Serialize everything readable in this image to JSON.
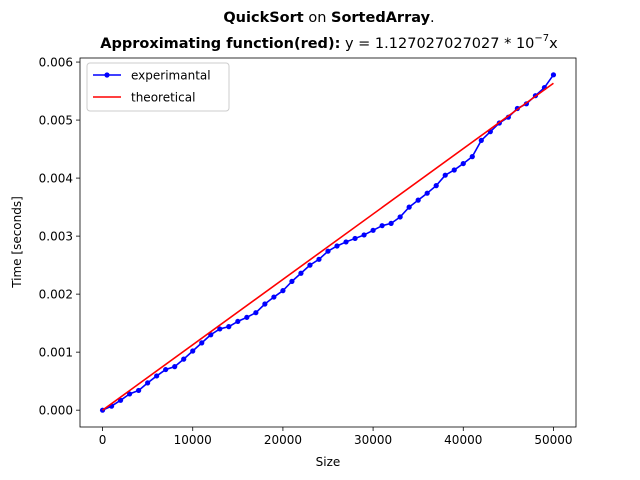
{
  "chart_data": {
    "type": "line",
    "title_line1": {
      "algorithm": "QuickSort",
      "connector": " on ",
      "input": "SortedArray",
      "suffix": "."
    },
    "title_line2": {
      "label": "Approximating function(red):",
      "formula_prefix": " y = 1.127027027027 * 10",
      "formula_exponent": "−7",
      "formula_suffix": "x"
    },
    "xlabel": "Size",
    "ylabel": "Time [seconds]",
    "xlim": [
      -2500,
      52500
    ],
    "ylim": [
      -0.00029,
      0.00607
    ],
    "xticks": [
      0,
      10000,
      20000,
      30000,
      40000,
      50000
    ],
    "xtick_labels": [
      "0",
      "10000",
      "20000",
      "30000",
      "40000",
      "50000"
    ],
    "yticks": [
      0.0,
      0.001,
      0.002,
      0.003,
      0.004,
      0.005,
      0.006
    ],
    "ytick_labels": [
      "0.000",
      "0.001",
      "0.002",
      "0.003",
      "0.004",
      "0.005",
      "0.006"
    ],
    "grid": false,
    "legend_placement": "top-left",
    "series": [
      {
        "name": "experimantal",
        "color": "#0000ff",
        "marker": "circle",
        "x": [
          0,
          1000,
          2000,
          3000,
          4000,
          5000,
          6000,
          7000,
          8000,
          9000,
          10000,
          11000,
          12000,
          13000,
          14000,
          15000,
          16000,
          17000,
          18000,
          19000,
          20000,
          21000,
          22000,
          23000,
          24000,
          25000,
          26000,
          27000,
          28000,
          29000,
          30000,
          31000,
          32000,
          33000,
          34000,
          35000,
          36000,
          37000,
          38000,
          39000,
          40000,
          41000,
          42000,
          43000,
          44000,
          45000,
          46000,
          47000,
          48000,
          49000,
          50000
        ],
        "y": [
          0.0,
          7e-05,
          0.00017,
          0.00028,
          0.00034,
          0.00047,
          0.00059,
          0.0007,
          0.00075,
          0.00088,
          0.00102,
          0.00116,
          0.0013,
          0.0014,
          0.00144,
          0.00153,
          0.0016,
          0.00168,
          0.00183,
          0.00195,
          0.00206,
          0.00222,
          0.00236,
          0.0025,
          0.0026,
          0.00274,
          0.00283,
          0.0029,
          0.00296,
          0.00302,
          0.0031,
          0.00318,
          0.00322,
          0.00333,
          0.0035,
          0.00362,
          0.00374,
          0.00387,
          0.00405,
          0.00414,
          0.00425,
          0.00437,
          0.00465,
          0.0048,
          0.00495,
          0.00505,
          0.0052,
          0.00528,
          0.00542,
          0.00556,
          0.00578
        ]
      },
      {
        "name": "theoretical",
        "color": "#ff0000",
        "marker": "none",
        "x": [
          0,
          50000
        ],
        "y": [
          0.0,
          0.005635
        ]
      }
    ]
  }
}
